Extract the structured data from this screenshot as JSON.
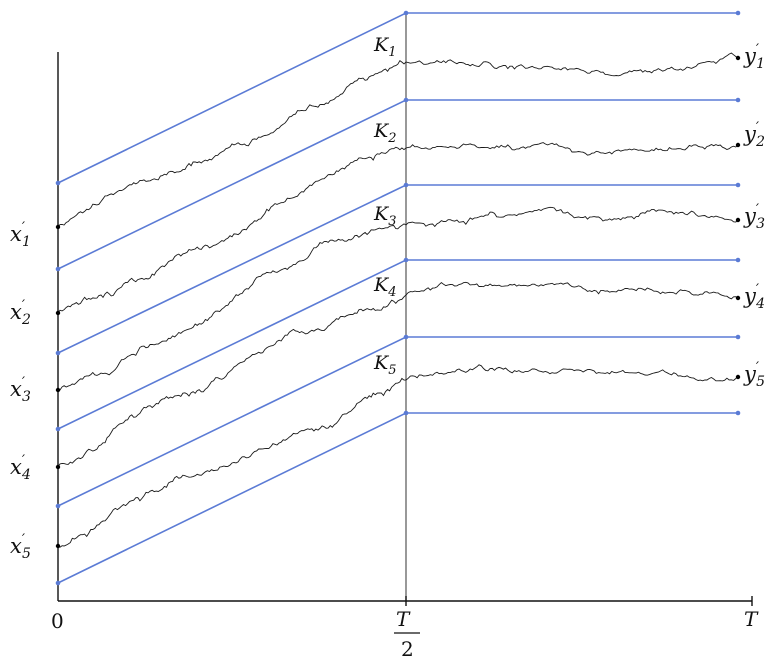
{
  "axis": {
    "origin": "0",
    "mid_num": "T",
    "mid_den": "2",
    "end": "T"
  },
  "colors": {
    "barrier": "#5b7bd5",
    "path": "#1a1a1a"
  },
  "bridges": [
    {
      "start": {
        "base": "x",
        "sub": "1"
      },
      "mid": {
        "base": "K",
        "sub": "1"
      },
      "end": {
        "base": "y",
        "sub": "1"
      }
    },
    {
      "start": {
        "base": "x",
        "sub": "2"
      },
      "mid": {
        "base": "K",
        "sub": "2"
      },
      "end": {
        "base": "y",
        "sub": "2"
      }
    },
    {
      "start": {
        "base": "x",
        "sub": "3"
      },
      "mid": {
        "base": "K",
        "sub": "3"
      },
      "end": {
        "base": "y",
        "sub": "3"
      }
    },
    {
      "start": {
        "base": "x",
        "sub": "4"
      },
      "mid": {
        "base": "K",
        "sub": "4"
      },
      "end": {
        "base": "y",
        "sub": "4"
      }
    },
    {
      "start": {
        "base": "x",
        "sub": "5"
      },
      "mid": {
        "base": "K",
        "sub": "5"
      },
      "end": {
        "base": "y",
        "sub": "5"
      }
    }
  ]
}
